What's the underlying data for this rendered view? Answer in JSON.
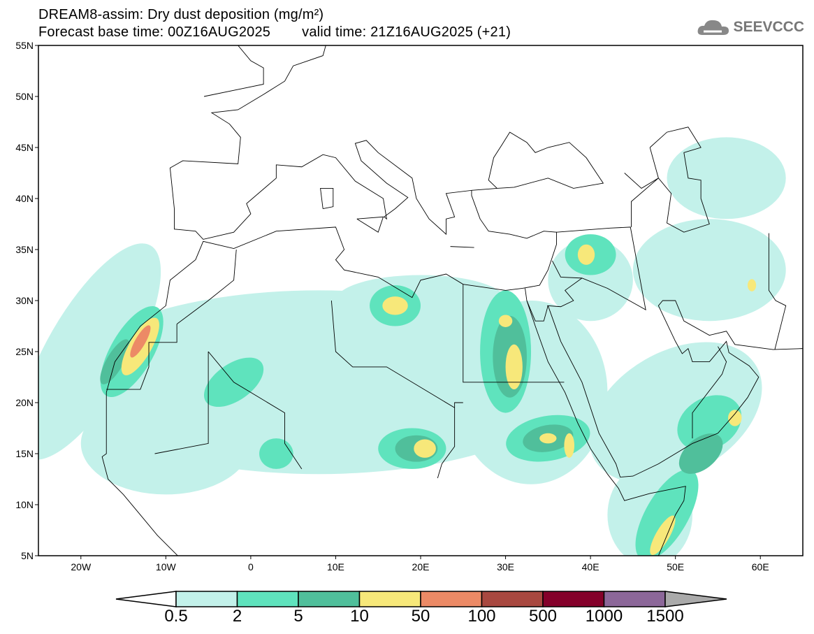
{
  "header": {
    "title": "DREAM8-assim: Dry dust deposition (mg/m²)",
    "base_time": "Forecast base time: 00Z16AUG2025",
    "valid_time": "valid time: 21Z16AUG2025 (+21)"
  },
  "logo": {
    "text": "SEEVCCC",
    "icon": "cloud-icon"
  },
  "map": {
    "lon_range": [
      -25,
      65
    ],
    "lat_range": [
      5,
      55
    ],
    "lat_ticks": [
      {
        "v": 55,
        "label": "55N"
      },
      {
        "v": 50,
        "label": "50N"
      },
      {
        "v": 45,
        "label": "45N"
      },
      {
        "v": 40,
        "label": "40N"
      },
      {
        "v": 35,
        "label": "35N"
      },
      {
        "v": 30,
        "label": "30N"
      },
      {
        "v": 25,
        "label": "25N"
      },
      {
        "v": 20,
        "label": "20N"
      },
      {
        "v": 15,
        "label": "15N"
      },
      {
        "v": 10,
        "label": "10N"
      },
      {
        "v": 5,
        "label": "5N"
      }
    ],
    "lon_ticks": [
      {
        "v": -20,
        "label": "20W"
      },
      {
        "v": -10,
        "label": "10W"
      },
      {
        "v": 0,
        "label": "0"
      },
      {
        "v": 10,
        "label": "10E"
      },
      {
        "v": 20,
        "label": "20E"
      },
      {
        "v": 30,
        "label": "30E"
      },
      {
        "v": 40,
        "label": "40E"
      },
      {
        "v": 50,
        "label": "50E"
      },
      {
        "v": 60,
        "label": "60E"
      }
    ],
    "dust_regions": [
      {
        "lon": 8,
        "lat": 22,
        "rlon": 30,
        "rlat": 9,
        "rot": 0,
        "level": 0
      },
      {
        "lon": -19,
        "lat": 25,
        "rlon": 5,
        "rlat": 12,
        "rot": 30,
        "level": 0
      },
      {
        "lon": -10,
        "lat": 16,
        "rlon": 10,
        "rlat": 5,
        "rot": 0,
        "level": 0
      },
      {
        "lon": 33,
        "lat": 21,
        "rlon": 9,
        "rlat": 9,
        "rot": 0,
        "level": 0
      },
      {
        "lon": 20,
        "lat": 30,
        "rlon": 10,
        "rlat": 2.5,
        "rot": 0,
        "level": 0
      },
      {
        "lon": 50,
        "lat": 19,
        "rlon": 11,
        "rlat": 6,
        "rot": -30,
        "level": 0
      },
      {
        "lon": 47,
        "lat": 9,
        "rlon": 5,
        "rlat": 5,
        "rot": 0,
        "level": 0
      },
      {
        "lon": 54,
        "lat": 33,
        "rlon": 9,
        "rlat": 5,
        "rot": 0,
        "level": 0
      },
      {
        "lon": 56,
        "lat": 42,
        "rlon": 7,
        "rlat": 4,
        "rot": 0,
        "level": 0
      },
      {
        "lon": 40,
        "lat": 32,
        "rlon": 5,
        "rlat": 4,
        "rot": 0,
        "level": 0
      },
      {
        "lon": -14,
        "lat": 25,
        "rlon": 2.5,
        "rlat": 5,
        "rot": 30,
        "level": 1
      },
      {
        "lon": 30,
        "lat": 25,
        "rlon": 3,
        "rlat": 6,
        "rot": 0,
        "level": 1
      },
      {
        "lon": 19,
        "lat": 15.5,
        "rlon": 4,
        "rlat": 2,
        "rot": 0,
        "level": 1
      },
      {
        "lon": 35,
        "lat": 16.5,
        "rlon": 5,
        "rlat": 2.2,
        "rot": -10,
        "level": 1
      },
      {
        "lon": -2,
        "lat": 22,
        "rlon": 4,
        "rlat": 1.8,
        "rot": -35,
        "level": 1
      },
      {
        "lon": 17,
        "lat": 29.5,
        "rlon": 3,
        "rlat": 2,
        "rot": 0,
        "level": 1
      },
      {
        "lon": 40,
        "lat": 34.5,
        "rlon": 3,
        "rlat": 2,
        "rot": 0,
        "level": 1
      },
      {
        "lon": 54,
        "lat": 18,
        "rlon": 4,
        "rlat": 2.5,
        "rot": -30,
        "level": 1
      },
      {
        "lon": 49,
        "lat": 9,
        "rlon": 2.5,
        "rlat": 5,
        "rot": 30,
        "level": 1
      },
      {
        "lon": 3,
        "lat": 15,
        "rlon": 2,
        "rlat": 1.5,
        "rot": 0,
        "level": 1
      },
      {
        "lon": -16,
        "lat": 24,
        "rlon": 1,
        "rlat": 2.5,
        "rot": 30,
        "level": 2
      },
      {
        "lon": 30.5,
        "lat": 24.5,
        "rlon": 2,
        "rlat": 4,
        "rot": 0,
        "level": 2
      },
      {
        "lon": 35,
        "lat": 16.5,
        "rlon": 3,
        "rlat": 1.3,
        "rot": -10,
        "level": 2
      },
      {
        "lon": 19.5,
        "lat": 15.5,
        "rlon": 2.5,
        "rlat": 1.3,
        "rot": 0,
        "level": 2
      },
      {
        "lon": 53,
        "lat": 15,
        "rlon": 3,
        "rlat": 1.5,
        "rot": -40,
        "level": 2
      },
      {
        "lon": -13,
        "lat": 25.5,
        "rlon": 1.3,
        "rlat": 3.2,
        "rot": 30,
        "level": 3
      },
      {
        "lon": 17,
        "lat": 29.5,
        "rlon": 1.5,
        "rlat": 0.9,
        "rot": 0,
        "level": 3
      },
      {
        "lon": 31,
        "lat": 23.5,
        "rlon": 1,
        "rlat": 2.2,
        "rot": 0,
        "level": 3
      },
      {
        "lon": 30,
        "lat": 28,
        "rlon": 0.8,
        "rlat": 0.6,
        "rot": 0,
        "level": 3
      },
      {
        "lon": 20.5,
        "lat": 15.5,
        "rlon": 1.3,
        "rlat": 0.9,
        "rot": 0,
        "level": 3
      },
      {
        "lon": 39.5,
        "lat": 34.5,
        "rlon": 1,
        "rlat": 1,
        "rot": 0,
        "level": 3
      },
      {
        "lon": 57,
        "lat": 18.5,
        "rlon": 0.8,
        "rlat": 0.8,
        "rot": 0,
        "level": 3
      },
      {
        "lon": 48.5,
        "lat": 7,
        "rlon": 0.8,
        "rlat": 2.2,
        "rot": 30,
        "level": 3
      },
      {
        "lon": 37.5,
        "lat": 15.8,
        "rlon": 0.6,
        "rlat": 1.2,
        "rot": 0,
        "level": 3
      },
      {
        "lon": 35,
        "lat": 16.5,
        "rlon": 1,
        "rlat": 0.5,
        "rot": 0,
        "level": 3
      },
      {
        "lon": 59,
        "lat": 31.5,
        "rlon": 0.5,
        "rlat": 0.6,
        "rot": 0,
        "level": 3
      },
      {
        "lon": -13,
        "lat": 26,
        "rlon": 0.6,
        "rlat": 1.8,
        "rot": 30,
        "level": 4
      }
    ]
  },
  "colorbar": {
    "colors": [
      "#c3f1ea",
      "#5fe3bd",
      "#50bf9b",
      "#f7e87a",
      "#ec8a66",
      "#a84840",
      "#84002a",
      "#8c6799"
    ],
    "under_color": "#ffffff",
    "over_color": "#aaaaaa",
    "labels": [
      "0.5",
      "2",
      "5",
      "10",
      "50",
      "100",
      "500",
      "1000",
      "1500"
    ]
  }
}
